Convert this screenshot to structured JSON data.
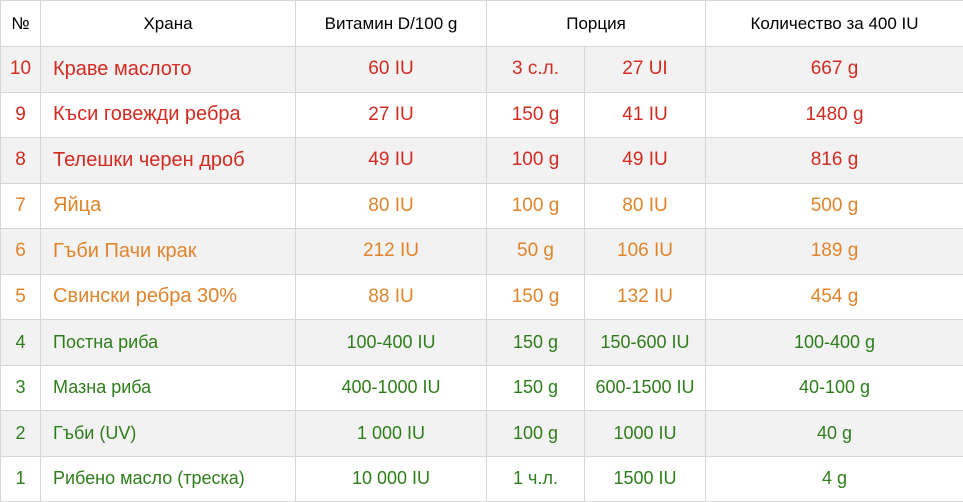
{
  "headers": {
    "num": "№",
    "food": "Храна",
    "vitamin": "Витамин D/100 g",
    "portion": "Порция",
    "amount": "Количество за 400 IU"
  },
  "colors": {
    "red": "#d22b22",
    "orange": "#e0842b",
    "green": "#2e7d1b"
  },
  "rows": [
    {
      "num": "10",
      "food": "Краве маслото",
      "vitamin": "60 IU",
      "portion": "3 с.л.",
      "portion_iu": "27 UI",
      "amount": "667 g",
      "tier": "red"
    },
    {
      "num": "9",
      "food": "Къси говежди ребра",
      "vitamin": "27 IU",
      "portion": "150 g",
      "portion_iu": "41 IU",
      "amount": "1480 g",
      "tier": "red"
    },
    {
      "num": "8",
      "food": "Телешки черен дроб",
      "vitamin": "49 IU",
      "portion": "100 g",
      "portion_iu": "49 IU",
      "amount": "816 g",
      "tier": "red"
    },
    {
      "num": "7",
      "food": "Яйца",
      "vitamin": "80 IU",
      "portion": "100 g",
      "portion_iu": "80 IU",
      "amount": "500 g",
      "tier": "orange"
    },
    {
      "num": "6",
      "food": "Гъби Пачи крак",
      "vitamin": "212 IU",
      "portion": "50 g",
      "portion_iu": "106 IU",
      "amount": "189 g",
      "tier": "orange"
    },
    {
      "num": "5",
      "food": "Свински ребра 30%",
      "vitamin": "88 IU",
      "portion": "150 g",
      "portion_iu": "132 IU",
      "amount": "454 g",
      "tier": "orange"
    },
    {
      "num": "4",
      "food": "Постна риба",
      "vitamin": "100-400 IU",
      "portion": "150 g",
      "portion_iu": "150-600 IU",
      "amount": "100-400 g",
      "tier": "green"
    },
    {
      "num": "3",
      "food": "Мазна риба",
      "vitamin": "400-1000 IU",
      "portion": "150 g",
      "portion_iu": "600-1500 IU",
      "amount": "40-100 g",
      "tier": "green"
    },
    {
      "num": "2",
      "food": "Гъби (UV)",
      "vitamin": "1 000 IU",
      "portion": "100 g",
      "portion_iu": "1000 IU",
      "amount": "40 g",
      "tier": "green"
    },
    {
      "num": "1",
      "food": "Рибено масло (треска)",
      "vitamin": "10 000 IU",
      "portion": "1 ч.л.",
      "portion_iu": "1500 IU",
      "amount": "4 g",
      "tier": "green"
    }
  ]
}
